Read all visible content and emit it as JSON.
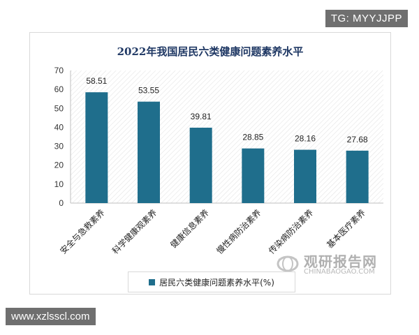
{
  "tags": {
    "top": "TG: MYYJJPP",
    "bottom": "www.xzlsscl.com"
  },
  "watermark": {
    "name": "观研报告网",
    "url": "CHINABAOGAO.COM"
  },
  "colors": {
    "bar": "#1f6e8c",
    "title": "#1f3864"
  },
  "chart_data": {
    "type": "bar",
    "title": "2022年我国居民六类健康问题素养水平",
    "categories": [
      "安全与急救素养",
      "科学健康观素养",
      "健康信息素养",
      "慢性病防治素养",
      "传染病防治素养",
      "基本医疗素养"
    ],
    "series": [
      {
        "name": "居民六类健康问题素养水平(%)",
        "values": [
          58.51,
          53.55,
          39.81,
          28.85,
          28.16,
          27.68
        ]
      }
    ],
    "data_labels": [
      "58.51",
      "53.55",
      "39.81",
      "28.85",
      "28.16",
      "27.68"
    ],
    "yticks": [
      "0",
      "10",
      "20",
      "30",
      "40",
      "50",
      "60",
      "70"
    ],
    "ylim": [
      0,
      70
    ],
    "grid": false,
    "legend": "bottom"
  }
}
